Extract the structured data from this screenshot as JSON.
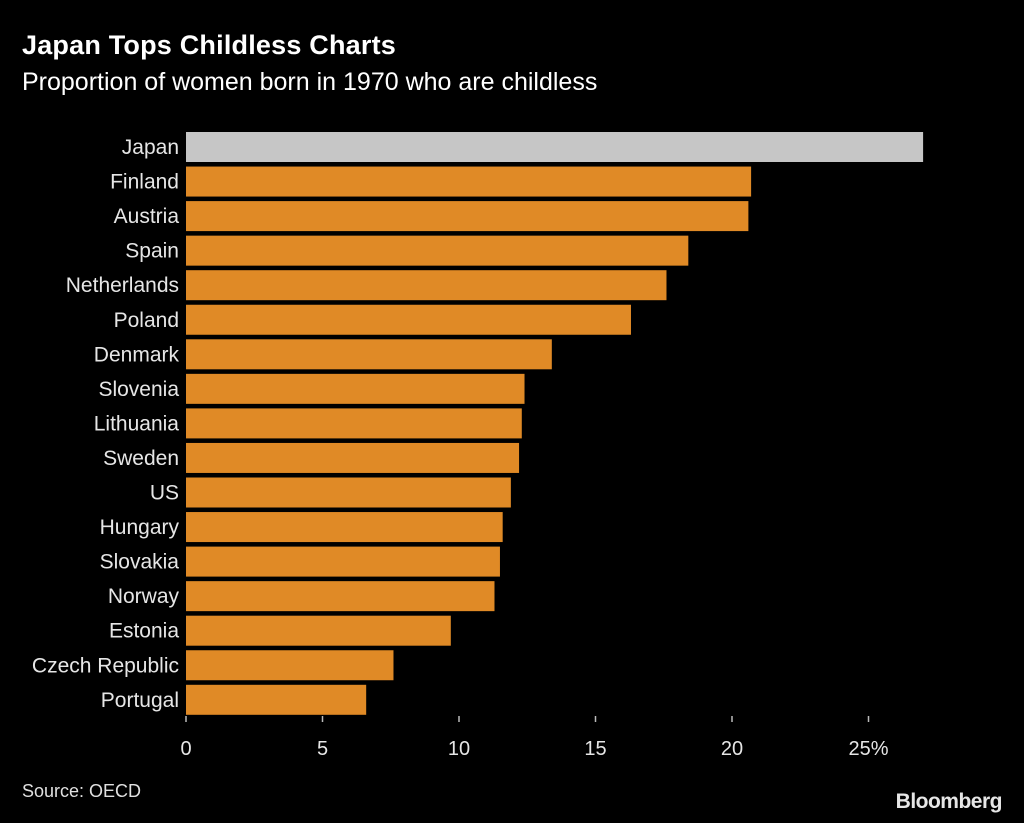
{
  "header": {
    "title": "Japan Tops Childless Charts",
    "subtitle": "Proportion of women born in 1970 who are childless"
  },
  "footer": {
    "source": "Source: OECD",
    "brand": "Bloomberg"
  },
  "colors": {
    "highlight": "#c6c6c6",
    "bar": "#e08a26",
    "background": "#000000",
    "text": "#ffffff"
  },
  "chart_data": {
    "type": "bar",
    "orientation": "horizontal",
    "title": "Japan Tops Childless Charts",
    "subtitle": "Proportion of women born in 1970 who are childless",
    "xlabel": "",
    "ylabel": "",
    "xlim": [
      0,
      27
    ],
    "ticks": [
      0,
      5,
      10,
      15,
      20,
      25
    ],
    "tick_labels": [
      "0",
      "5",
      "10",
      "15",
      "20",
      "25%"
    ],
    "categories": [
      "Japan",
      "Finland",
      "Austria",
      "Spain",
      "Netherlands",
      "Poland",
      "Denmark",
      "Slovenia",
      "Lithuania",
      "Sweden",
      "US",
      "Hungary",
      "Slovakia",
      "Norway",
      "Estonia",
      "Czech Republic",
      "Portugal"
    ],
    "values": [
      27.0,
      20.7,
      20.6,
      18.4,
      17.6,
      16.3,
      13.4,
      12.4,
      12.3,
      12.2,
      11.9,
      11.6,
      11.5,
      11.3,
      9.7,
      7.6,
      6.6
    ],
    "highlighted": [
      "Japan"
    ],
    "grid": false,
    "legend": "none"
  }
}
